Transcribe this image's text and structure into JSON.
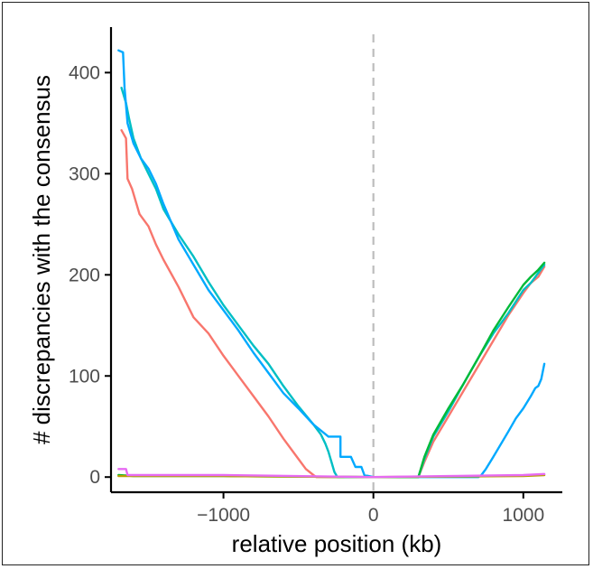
{
  "chart_data": {
    "type": "line",
    "title": "",
    "xlabel": "relative position (kb)",
    "ylabel": "# discrepancies with the consensus",
    "xlim": [
      -1750,
      1260
    ],
    "ylim": [
      -15,
      445
    ],
    "x_ticks": [
      {
        "value": -1000,
        "label": "−1000"
      },
      {
        "value": 0,
        "label": "0"
      },
      {
        "value": 1000,
        "label": "1000"
      }
    ],
    "y_ticks": [
      {
        "value": 0,
        "label": "0"
      },
      {
        "value": 100,
        "label": "100"
      },
      {
        "value": 200,
        "label": "200"
      },
      {
        "value": 300,
        "label": "300"
      },
      {
        "value": 400,
        "label": "400"
      }
    ],
    "reference_line": {
      "x": 0,
      "style": "dashed",
      "color": "#bdbdbd"
    },
    "grid": false,
    "legend": "none",
    "series": [
      {
        "color": "#f8766d",
        "x": [
          -1680,
          -1650,
          -1640,
          -1610,
          -1560,
          -1500,
          -1450,
          -1400,
          -1300,
          -1200,
          -1100,
          -1000,
          -900,
          -800,
          -700,
          -600,
          -500,
          -450,
          -400,
          -380,
          -200,
          0,
          200,
          300,
          340,
          400,
          500,
          600,
          700,
          800,
          900,
          1000,
          1050,
          1100,
          1140
        ],
        "y": [
          343,
          335,
          295,
          285,
          260,
          248,
          230,
          215,
          188,
          158,
          142,
          120,
          100,
          80,
          60,
          38,
          18,
          8,
          2,
          0,
          0,
          0,
          0,
          0,
          15,
          35,
          60,
          85,
          110,
          135,
          160,
          182,
          192,
          198,
          208
        ]
      },
      {
        "color": "#00bfc4",
        "x": [
          -1680,
          -1650,
          -1630,
          -1600,
          -1550,
          -1500,
          -1450,
          -1400,
          -1300,
          -1200,
          -1100,
          -1000,
          -900,
          -800,
          -700,
          -600,
          -500,
          -400,
          -350,
          -320,
          -300,
          -280,
          -260,
          -240,
          0,
          200,
          300,
          340,
          400,
          500,
          600,
          700,
          800,
          900,
          1000,
          1050,
          1100,
          1140
        ],
        "y": [
          385,
          370,
          355,
          335,
          315,
          300,
          285,
          265,
          240,
          218,
          193,
          170,
          150,
          130,
          112,
          90,
          70,
          52,
          42,
          33,
          25,
          15,
          5,
          0,
          0,
          0,
          0,
          18,
          40,
          65,
          92,
          118,
          142,
          162,
          185,
          192,
          202,
          210
        ]
      },
      {
        "color": "#00a9ff",
        "x": [
          -1700,
          -1670,
          -1660,
          -1640,
          -1600,
          -1550,
          -1500,
          -1450,
          -1400,
          -1300,
          -1200,
          -1100,
          -1000,
          -900,
          -800,
          -700,
          -600,
          -500,
          -400,
          -300,
          -220,
          -220,
          -150,
          -120,
          -80,
          -60,
          0,
          400,
          600,
          700,
          720,
          750,
          800,
          900,
          950,
          1000,
          1050,
          1080,
          1100,
          1120,
          1140
        ],
        "y": [
          422,
          420,
          385,
          350,
          330,
          315,
          305,
          290,
          270,
          235,
          210,
          185,
          165,
          145,
          123,
          103,
          83,
          68,
          52,
          40,
          40,
          20,
          20,
          10,
          10,
          2,
          0,
          0,
          0,
          0,
          2,
          8,
          20,
          45,
          58,
          68,
          80,
          88,
          90,
          97,
          112
        ]
      },
      {
        "color": "#00ba38",
        "x": [
          -1700,
          -1600,
          -1000,
          0,
          300,
          340,
          400,
          500,
          600,
          700,
          800,
          900,
          1000,
          1050,
          1100,
          1140
        ],
        "y": [
          2,
          1,
          1,
          0,
          0,
          20,
          42,
          68,
          92,
          118,
          145,
          168,
          190,
          198,
          205,
          212
        ]
      },
      {
        "color": "#b79f00",
        "x": [
          -1700,
          -1000,
          0,
          1000,
          1140
        ],
        "y": [
          1,
          1,
          0,
          1,
          2
        ]
      },
      {
        "color": "#e76bf3",
        "x": [
          -1700,
          -1650,
          -1640,
          -1500,
          -1000,
          0,
          500,
          1000,
          1140
        ],
        "y": [
          8,
          8,
          2,
          2,
          2,
          0,
          1,
          2,
          3
        ]
      }
    ]
  }
}
